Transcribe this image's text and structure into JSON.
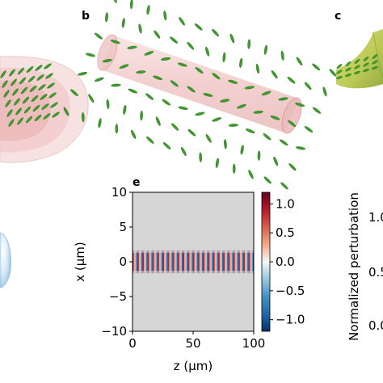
{
  "panels": {
    "b_label": "b",
    "c_label": "c",
    "e_label": "e"
  },
  "right_panel": {
    "ylabel": "Normalized perturbation",
    "ticks": [
      "1.0",
      "0.5",
      "0.0"
    ]
  },
  "chart_data": {
    "type": "heatmap",
    "title": "",
    "xlabel": "z (μm)",
    "ylabel": "x (μm)",
    "xlim": [
      0,
      100
    ],
    "ylim": [
      -10,
      10
    ],
    "xticks": [
      0,
      50,
      100
    ],
    "yticks": [
      -10,
      -5,
      0,
      5,
      10
    ],
    "colorbar": {
      "min": -1.2,
      "max": 1.2,
      "ticks": [
        -1.0,
        -0.5,
        0.0,
        0.5,
        1.0
      ],
      "colormap": "RdBu_r"
    },
    "field": {
      "periods_along_z": 24,
      "band_halfwidth_x": 1.3,
      "amplitude": 1.0
    }
  },
  "colors": {
    "background_field": "#d6d6d6",
    "tube": "#e9a9a9",
    "rod": "#3f9a2d",
    "cone": "#f2c8c8",
    "sphere": "#bcd9f2",
    "surface": "#bccb54"
  }
}
